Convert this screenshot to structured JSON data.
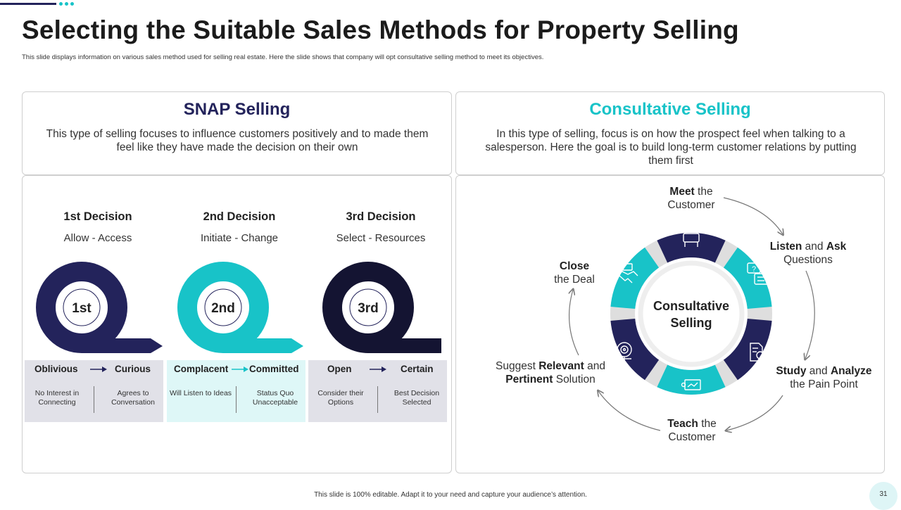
{
  "slide": {
    "title": "Selecting the Suitable Sales Methods for Property Selling",
    "subtitle": "This slide displays information on various sales method used for selling real estate. Here the slide shows that company will opt consultative selling method to meet its objectives.",
    "footer": "This slide is 100% editable. Adapt it to your need and capture your audience’s attention.",
    "page_number": "31"
  },
  "colors": {
    "navy": "#23235b",
    "teal": "#18c3c8",
    "dark": "#141432",
    "gray_box": "#e1e1e8",
    "teal_box": "#def7f7"
  },
  "snap": {
    "title": "SNAP Selling",
    "description": "This type of selling focuses to influence customers positively and to made them feel like they have made the decision on their own",
    "decisions": [
      {
        "title": "1st Decision",
        "subtitle": "Allow - Access",
        "badge": "1st",
        "from": "Oblivious",
        "to": "Curious",
        "from_desc": "No Interest in Connecting",
        "to_desc": "Agrees to Conversation"
      },
      {
        "title": "2nd Decision",
        "subtitle": "Initiate - Change",
        "badge": "2nd",
        "from": "Complacent",
        "to": "Committed",
        "from_desc": "Will Listen to Ideas",
        "to_desc": "Status Quo Unacceptable"
      },
      {
        "title": "3rd Decision",
        "subtitle": "Select - Resources",
        "badge": "3rd",
        "from": "Open",
        "to": "Certain",
        "from_desc": "Consider their Options",
        "to_desc": "Best Decision Selected"
      }
    ]
  },
  "consultative": {
    "title": "Consultative Selling",
    "description": "In this type of selling, focus is on how the prospect feel when talking to a salesperson. Here the goal is to build long-term customer relations by putting them first",
    "center_line1": "Consultative",
    "center_line2": "Selling",
    "steps": {
      "meet": {
        "bold": "Meet",
        "rest": " the",
        "line2": "Customer"
      },
      "listen": {
        "bold1": "Listen",
        "mid": " and ",
        "bold2": "Ask",
        "line2": "Questions"
      },
      "study": {
        "bold1": "Study",
        "mid": " and ",
        "bold2": "Analyze",
        "line2": "the Pain Point"
      },
      "teach": {
        "bold": "Teach",
        "rest": " the",
        "line2": "Customer"
      },
      "suggest": {
        "pre": "Suggest ",
        "bold1": "Relevant",
        "mid": " and",
        "bold2": "Pertinent",
        "post": " Solution"
      },
      "close": {
        "bold": "Close",
        "line2": "the Deal"
      }
    }
  }
}
